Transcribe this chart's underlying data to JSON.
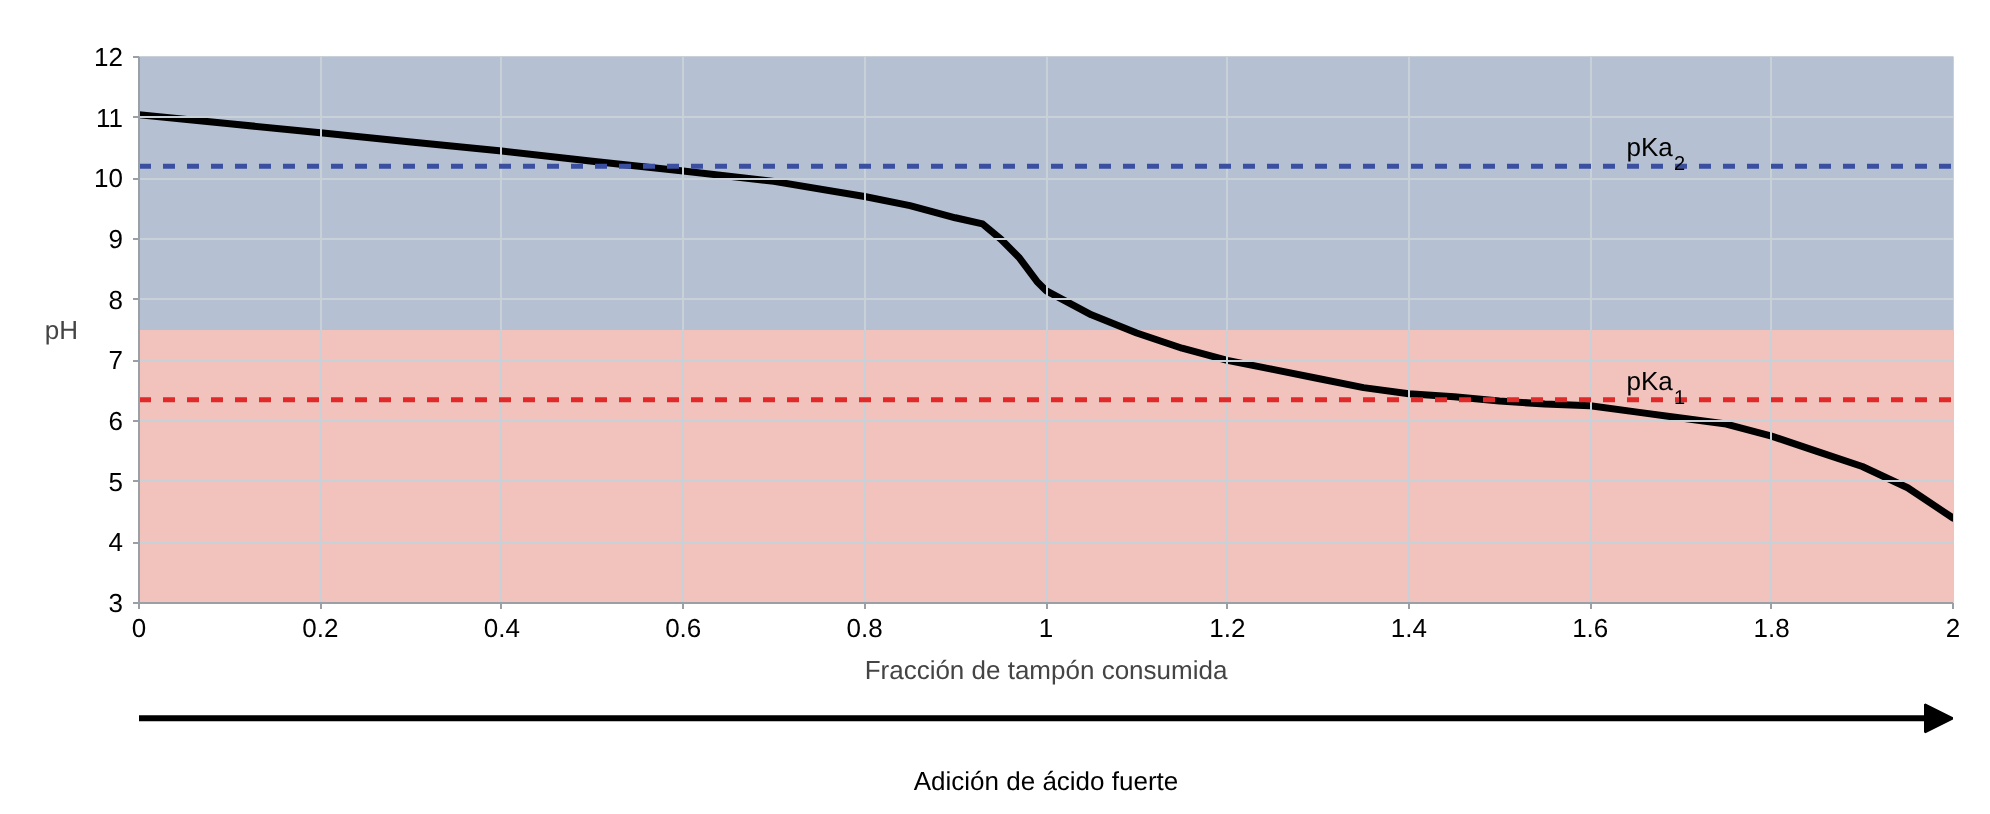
{
  "chart_data": {
    "type": "line",
    "xlabel": "Fracción de tampón consumida",
    "ylabel": "pH",
    "x": [
      0,
      0.1,
      0.2,
      0.3,
      0.4,
      0.5,
      0.6,
      0.7,
      0.8,
      0.85,
      0.9,
      0.93,
      0.95,
      0.97,
      0.99,
      1.0,
      1.05,
      1.1,
      1.15,
      1.2,
      1.25,
      1.3,
      1.35,
      1.4,
      1.45,
      1.5,
      1.55,
      1.6,
      1.65,
      1.7,
      1.75,
      1.8,
      1.85,
      1.9,
      1.95,
      2.0
    ],
    "series": [
      {
        "color": "#000000",
        "values": [
          11.05,
          10.9,
          10.75,
          10.6,
          10.45,
          10.28,
          10.12,
          9.95,
          9.7,
          9.55,
          9.35,
          9.25,
          9.0,
          8.7,
          8.3,
          8.15,
          7.75,
          7.45,
          7.2,
          7.0,
          6.85,
          6.7,
          6.55,
          6.45,
          6.4,
          6.33,
          6.28,
          6.25,
          6.15,
          6.05,
          5.95,
          5.75,
          5.5,
          5.25,
          4.9,
          4.4
        ]
      }
    ],
    "xlim": [
      0,
      2
    ],
    "ylim": [
      3,
      12
    ],
    "xticks": [
      0,
      0.2,
      0.4,
      0.6,
      0.8,
      1,
      1.2,
      1.4,
      1.6,
      1.8,
      2
    ],
    "yticks": [
      3,
      4,
      5,
      6,
      7,
      8,
      9,
      10,
      11,
      12
    ],
    "grid": true,
    "line_style": "solid",
    "marker": "none",
    "ref_lines": [
      {
        "axis": "y",
        "value": 10.2,
        "label": "pKa$_{2}$",
        "color": "#3a4fa0",
        "line_style": "dashed"
      },
      {
        "axis": "y",
        "value": 6.35,
        "label": "pKa$_{1}$",
        "color": "#e02a2a",
        "line_style": "dashed"
      }
    ],
    "bands": [
      {
        "axis": "y",
        "from": 3,
        "to": 7.5,
        "color": "#f2c2bd"
      },
      {
        "axis": "y",
        "from": 7.5,
        "to": 12,
        "color": "#b5c0d3"
      }
    ],
    "annotations": [
      "Adición de ácido fuerte"
    ]
  }
}
